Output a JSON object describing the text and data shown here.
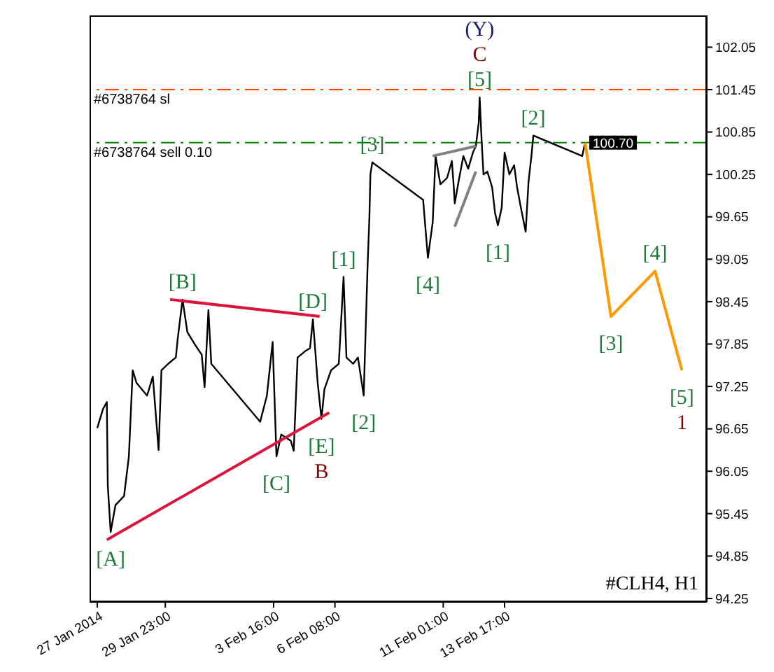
{
  "chart_data": {
    "type": "line",
    "xlim": [
      "2014-01-26T16:00",
      "2014-02-22T12:00"
    ],
    "ylim": [
      94.2,
      102.5
    ],
    "xticks": [
      {
        "value": "2014-01-27T00:00",
        "label": "27 Jan 2014"
      },
      {
        "value": "2014-01-29T23:00",
        "label": "29 Jan 23:00"
      },
      {
        "value": "2014-02-03T16:00",
        "label": "3 Feb 16:00"
      },
      {
        "value": "2014-02-06T08:00",
        "label": "6 Feb 08:00"
      },
      {
        "value": "2014-02-11T01:00",
        "label": "11 Feb 01:00"
      },
      {
        "value": "2014-02-13T17:00",
        "label": "13 Feb 17:00"
      }
    ],
    "yticks": [
      94.25,
      94.85,
      95.45,
      96.05,
      96.65,
      97.25,
      97.85,
      98.45,
      99.05,
      99.65,
      100.25,
      100.85,
      101.45,
      102.05
    ],
    "grid": false,
    "legend": false,
    "marker": "none",
    "line_style": "solid",
    "series": [
      {
        "color": "#000000",
        "x": [
          "2014-01-27T00:00",
          "2014-01-27T06:00",
          "2014-01-27T10:00",
          "2014-01-27T11:00",
          "2014-01-27T14:00",
          "2014-01-27T19:00",
          "2014-01-28T04:00",
          "2014-01-28T09:00",
          "2014-01-28T13:00",
          "2014-01-28T17:00",
          "2014-01-29T04:00",
          "2014-01-29T10:00",
          "2014-01-29T16:00",
          "2014-01-29T19:00",
          "2014-01-30T02:00",
          "2014-01-30T10:00",
          "2014-01-30T12:00",
          "2014-01-30T17:00",
          "2014-01-30T22:00",
          "2014-01-31T06:00",
          "2014-01-31T13:00",
          "2014-01-31T16:00",
          "2014-01-31T20:00",
          "2014-01-31T23:00",
          "2014-02-03T02:00",
          "2014-02-03T09:00",
          "2014-02-03T15:00",
          "2014-02-03T19:00",
          "2014-02-04T00:00",
          "2014-02-04T10:00",
          "2014-02-04T13:00",
          "2014-02-04T17:00",
          "2014-02-05T01:00",
          "2014-02-05T06:00",
          "2014-02-05T09:00",
          "2014-02-05T14:00",
          "2014-02-05T18:00",
          "2014-02-05T21:00",
          "2014-02-06T04:00",
          "2014-02-06T12:00",
          "2014-02-06T17:00",
          "2014-02-06T20:00",
          "2014-02-07T03:00",
          "2014-02-07T08:00",
          "2014-02-07T14:00",
          "2014-02-07T18:00",
          "2014-02-07T20:00",
          "2014-02-07T21:00",
          "2014-02-07T23:00",
          "2014-02-10T04:00",
          "2014-02-10T09:00",
          "2014-02-10T14:00",
          "2014-02-10T17:00",
          "2014-02-10T22:00",
          "2014-02-11T05:00",
          "2014-02-11T10:00",
          "2014-02-11T12:00",
          "2014-02-11T13:00",
          "2014-02-11T17:00",
          "2014-02-11T22:00",
          "2014-02-12T03:00",
          "2014-02-12T08:00",
          "2014-02-12T11:00",
          "2014-02-12T14:00",
          "2014-02-12T15:00",
          "2014-02-12T17:00",
          "2014-02-12T19:00",
          "2014-02-12T23:00",
          "2014-02-13T04:00",
          "2014-02-13T07:00",
          "2014-02-13T10:00",
          "2014-02-13T14:00",
          "2014-02-13T17:00",
          "2014-02-13T22:00",
          "2014-02-14T03:00",
          "2014-02-14T06:00",
          "2014-02-14T10:00",
          "2014-02-14T15:00",
          "2014-02-14T18:00",
          "2014-02-14T21:00",
          "2014-02-14T23:00",
          "2014-02-17T02:00",
          "2014-02-17T05:00"
        ],
        "values": [
          96.66,
          96.93,
          97.03,
          95.85,
          95.19,
          95.57,
          95.7,
          96.26,
          97.48,
          97.3,
          97.12,
          97.39,
          96.35,
          97.48,
          97.57,
          97.66,
          97.93,
          98.48,
          98.02,
          97.84,
          97.7,
          97.24,
          98.33,
          97.57,
          96.75,
          97.12,
          97.88,
          96.26,
          96.57,
          96.48,
          96.34,
          97.66,
          97.75,
          97.79,
          98.2,
          97.3,
          96.79,
          97.21,
          97.48,
          97.57,
          98.8,
          97.66,
          97.57,
          97.66,
          97.12,
          98.93,
          99.66,
          100.25,
          100.42,
          99.89,
          99.07,
          99.57,
          100.51,
          100.11,
          100.2,
          100.44,
          100.07,
          99.84,
          100.15,
          100.51,
          100.33,
          100.56,
          100.65,
          100.98,
          101.34,
          100.74,
          100.25,
          100.29,
          100.07,
          99.71,
          99.53,
          99.78,
          100.56,
          100.25,
          100.38,
          100.07,
          99.78,
          99.44,
          100.15,
          100.51,
          100.8,
          100.51,
          100.7
        ]
      },
      {
        "color": "#ff9900",
        "x": [
          "2014-02-17T05:00",
          "2014-02-18T08:00",
          "2014-02-20T06:00",
          "2014-02-21T10:00"
        ],
        "values": [
          100.7,
          98.24,
          98.88,
          97.48
        ]
      },
      {
        "color": "#dc143c",
        "x": [
          "2014-01-27T10:00",
          "2014-02-06T02:00"
        ],
        "values": [
          95.08,
          96.88
        ]
      },
      {
        "color": "#dc143c",
        "x": [
          "2014-01-30T04:00",
          "2014-02-05T16:00"
        ],
        "values": [
          98.48,
          98.24
        ]
      },
      {
        "color": "#808080",
        "x": [
          "2014-02-10T14:00",
          "2014-02-12T11:00"
        ],
        "values": [
          100.51,
          100.65
        ]
      },
      {
        "color": "#808080",
        "x": [
          "2014-02-11T13:00",
          "2014-02-12T11:00"
        ],
        "values": [
          99.51,
          100.29
        ]
      }
    ],
    "ref_lines": [
      {
        "axis": "y",
        "value": 101.45,
        "label": "#6738764 sl",
        "color": "#ff4500",
        "line_style": "dashed"
      },
      {
        "axis": "y",
        "value": 100.7,
        "label": "#6738764 sell 0.10",
        "color": "#008000",
        "line_style": "dashed"
      }
    ],
    "annotations": [
      {
        "text": "100.70",
        "x": "2014-02-17T05:00",
        "y": 100.7
      },
      {
        "text": "[A]",
        "x": "2014-01-27T14:00",
        "y": 95.19
      },
      {
        "text": "[B]",
        "x": "2014-01-30T17:00",
        "y": 98.48
      },
      {
        "text": "[C]",
        "x": "2014-02-03T19:00",
        "y": 96.26
      },
      {
        "text": "[D]",
        "x": "2014-02-05T09:00",
        "y": 98.2
      },
      {
        "text": "[E]",
        "x": "2014-02-05T18:00",
        "y": 96.79
      },
      {
        "text": "B",
        "x": "2014-02-05T18:00",
        "y": 96.79
      },
      {
        "text": "[1]",
        "x": "2014-02-06T17:00",
        "y": 98.8
      },
      {
        "text": "[2]",
        "x": "2014-02-07T14:00",
        "y": 97.12
      },
      {
        "text": "[3]",
        "x": "2014-02-07T23:00",
        "y": 100.42
      },
      {
        "text": "[4]",
        "x": "2014-02-10T09:00",
        "y": 99.07
      },
      {
        "text": "[5]",
        "x": "2014-02-12T15:00",
        "y": 101.34
      },
      {
        "text": "C",
        "x": "2014-02-12T15:00",
        "y": 101.34
      },
      {
        "text": "(Y)",
        "x": "2014-02-12T15:00",
        "y": 101.34
      },
      {
        "text": "[1]",
        "x": "2014-02-13T10:00",
        "y": 99.53
      },
      {
        "text": "[2]",
        "x": "2014-02-14T23:00",
        "y": 100.8
      },
      {
        "text": "[3]",
        "x": "2014-02-18T08:00",
        "y": 98.24
      },
      {
        "text": "[4]",
        "x": "2014-02-20T06:00",
        "y": 98.88
      },
      {
        "text": "[5]",
        "x": "2014-02-21T10:00",
        "y": 97.48
      },
      {
        "text": "1",
        "x": "2014-02-21T10:00",
        "y": 97.48
      },
      "#CLH4, H1"
    ]
  }
}
